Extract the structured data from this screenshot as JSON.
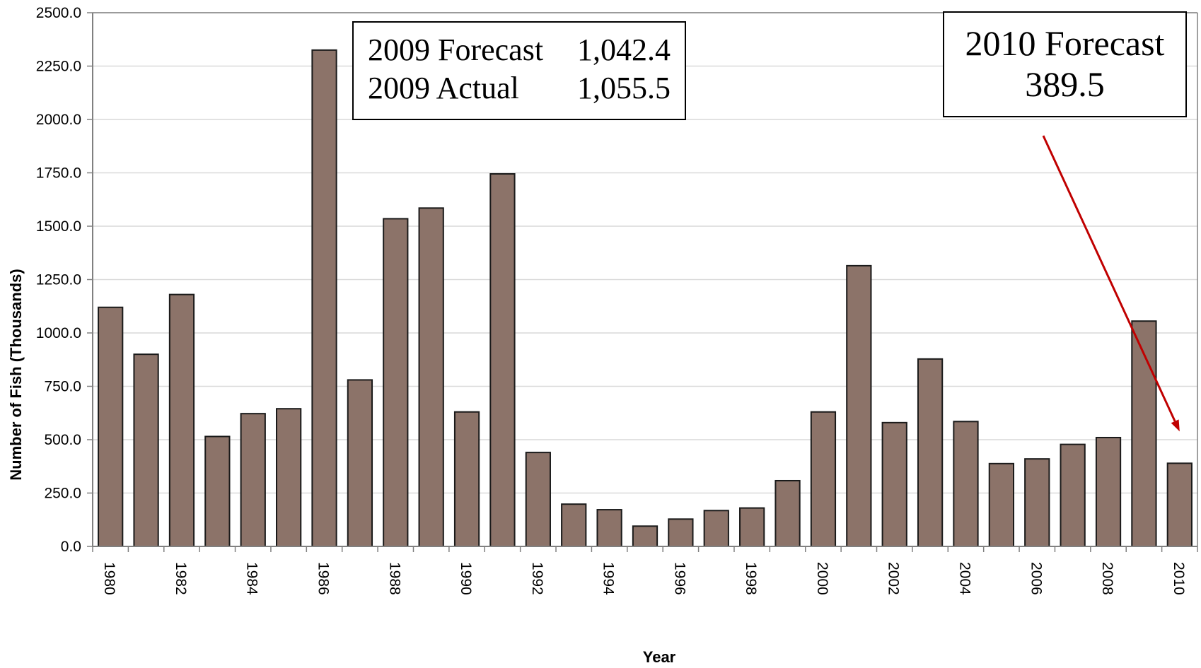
{
  "chart_data": {
    "type": "bar",
    "title": "",
    "xlabel": "Year",
    "ylabel": "Number of Fish (Thousands)",
    "ylim": [
      0,
      2500
    ],
    "yticks": [
      "0.0",
      "250.0",
      "500.0",
      "750.0",
      "1000.0",
      "1250.0",
      "1500.0",
      "1750.0",
      "2000.0",
      "2250.0",
      "2500.0"
    ],
    "ytick_values": [
      0,
      250,
      500,
      750,
      1000,
      1250,
      1500,
      1750,
      2000,
      2250,
      2500
    ],
    "grid": "horizontal",
    "categories": [
      "1980",
      "1981",
      "1982",
      "1983",
      "1984",
      "1985",
      "1986",
      "1987",
      "1988",
      "1989",
      "1990",
      "1991",
      "1992",
      "1993",
      "1994",
      "1995",
      "1996",
      "1997",
      "1998",
      "1999",
      "2000",
      "2001",
      "2002",
      "2003",
      "2004",
      "2005",
      "2006",
      "2007",
      "2008",
      "2009",
      "2010"
    ],
    "x_tick_labels": [
      "1980",
      "",
      "1982",
      "",
      "1984",
      "",
      "1986",
      "",
      "1988",
      "",
      "1990",
      "",
      "1992",
      "",
      "1994",
      "",
      "1996",
      "",
      "1998",
      "",
      "2000",
      "",
      "2002",
      "",
      "2004",
      "",
      "2006",
      "",
      "2008",
      "",
      "2010"
    ],
    "values": [
      1120,
      900,
      1180,
      515,
      622,
      645,
      2325,
      780,
      1535,
      1585,
      630,
      1745,
      440,
      198,
      172,
      95,
      128,
      168,
      180,
      308,
      630,
      1315,
      580,
      878,
      585,
      388,
      410,
      478,
      510,
      1055.5,
      389.5
    ],
    "bar_color": "#8c7369",
    "annotations": [
      {
        "lines": [
          [
            "2009 Forecast",
            "1,042.4"
          ],
          [
            "2009 Actual",
            "1,055.5"
          ]
        ]
      },
      {
        "lines": [
          "2010 Forecast",
          "389.5"
        ],
        "arrow_to": "2010",
        "arrow_color": "#c00000"
      }
    ]
  }
}
